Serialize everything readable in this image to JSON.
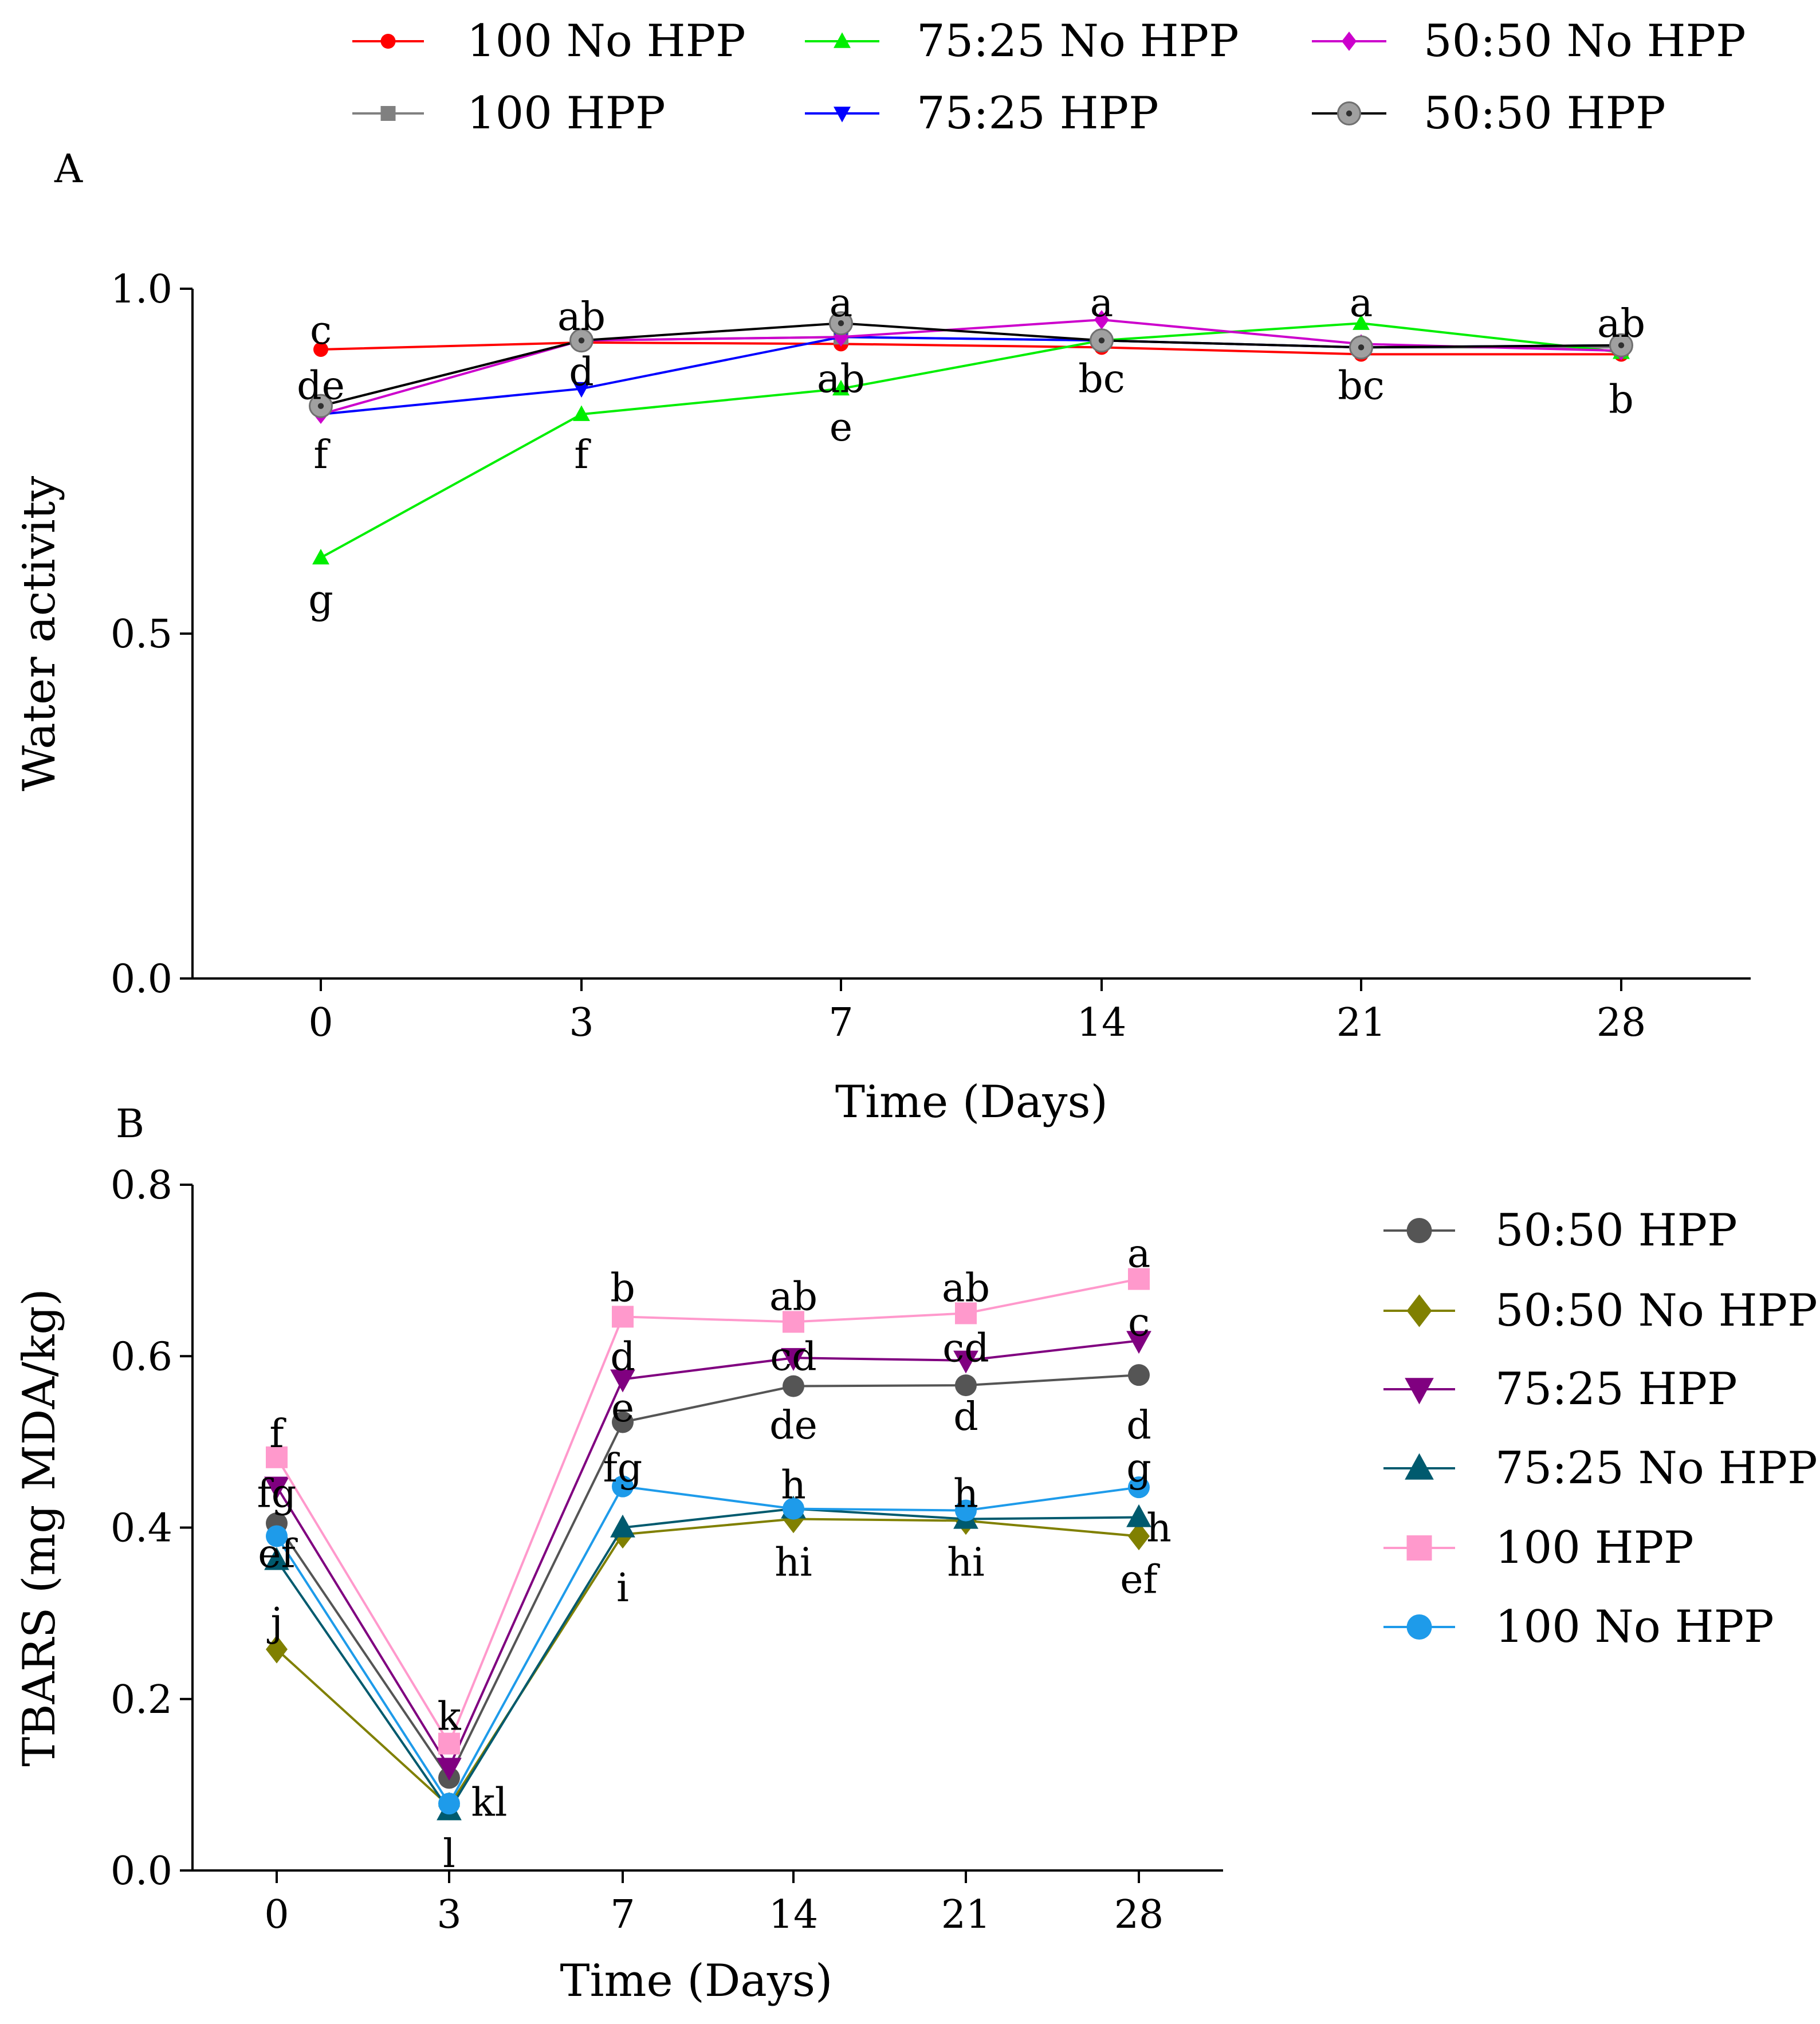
{
  "colors": {
    "axis": "#000000",
    "100 No HPP A": "#ff0000",
    "100 HPP A": "#808080",
    "75:25 No HPP A": "#00ee00",
    "75:25 HPP A": "#0000ff",
    "50:50 No HPP A": "#cc00cc",
    "50:50 HPP A": "#000000",
    "50:50 HPP B": "#555555",
    "50:50 No HPP B": "#808000",
    "75:25 HPP B": "#800080",
    "75:25 No HPP B": "#005a6e",
    "100 HPP B": "#ff99cc",
    "100 No HPP B": "#1e9bea"
  },
  "chart_data": [
    {
      "panel": "A",
      "type": "line",
      "xlabel": "Time (Days)",
      "ylabel": "Water activity",
      "categories": [
        "0",
        "3",
        "7",
        "14",
        "21",
        "28"
      ],
      "ylim": [
        0,
        1.0
      ],
      "yticks": [
        "0.0",
        "0.5",
        "1.0"
      ],
      "legend_position": "top",
      "series": [
        {
          "name": "100 No HPP",
          "marker": "circle",
          "values": [
            0.912,
            0.922,
            0.92,
            0.915,
            0.905,
            0.905
          ]
        },
        {
          "name": "100 HPP",
          "marker": "square",
          "values": [
            0.83,
            0.925,
            0.93,
            0.925,
            0.915,
            0.915
          ]
        },
        {
          "name": "75:25 No HPP",
          "marker": "triangle-up",
          "values": [
            0.61,
            0.818,
            0.855,
            0.925,
            0.95,
            0.908
          ]
        },
        {
          "name": "75:25  HPP",
          "marker": "triangle-down",
          "values": [
            0.818,
            0.855,
            0.93,
            0.925,
            0.915,
            0.918
          ]
        },
        {
          "name": "50:50 No HPP",
          "marker": "diamond",
          "values": [
            0.818,
            0.925,
            0.93,
            0.955,
            0.92,
            0.91
          ]
        },
        {
          "name": "50:50 HPP",
          "marker": "circle-dot",
          "values": [
            0.83,
            0.925,
            0.95,
            0.925,
            0.915,
            0.918
          ]
        }
      ],
      "annotations": [
        {
          "text": "c",
          "x": "0",
          "y": 0.94
        },
        {
          "text": "de",
          "x": "0",
          "y": 0.86
        },
        {
          "text": "f",
          "x": "0",
          "y": 0.76
        },
        {
          "text": "g",
          "x": "0",
          "y": 0.55
        },
        {
          "text": "ab",
          "x": "3",
          "y": 0.96
        },
        {
          "text": "d",
          "x": "3",
          "y": 0.88
        },
        {
          "text": "f",
          "x": "3",
          "y": 0.76
        },
        {
          "text": "a",
          "x": "7",
          "y": 0.98
        },
        {
          "text": "ab",
          "x": "7",
          "y": 0.87
        },
        {
          "text": "e",
          "x": "7",
          "y": 0.8
        },
        {
          "text": "a",
          "x": "14",
          "y": 0.98
        },
        {
          "text": "bc",
          "x": "14",
          "y": 0.87
        },
        {
          "text": "a",
          "x": "21",
          "y": 0.98
        },
        {
          "text": "bc",
          "x": "21",
          "y": 0.86
        },
        {
          "text": "ab",
          "x": "28",
          "y": 0.95
        },
        {
          "text": "b",
          "x": "28",
          "y": 0.84
        }
      ]
    },
    {
      "panel": "B",
      "type": "line",
      "xlabel": "Time (Days)",
      "ylabel": "TBARS (mg MDA/kg)",
      "categories": [
        "0",
        "3",
        "7",
        "14",
        "21",
        "28"
      ],
      "ylim": [
        0,
        0.8
      ],
      "yticks": [
        "0.0",
        "0.2",
        "0.4",
        "0.6",
        "0.8"
      ],
      "legend_position": "right",
      "series": [
        {
          "name": "50:50 HPP",
          "marker": "circle",
          "values": [
            0.405,
            0.108,
            0.523,
            0.565,
            0.566,
            0.578
          ]
        },
        {
          "name": "50:50 No HPP",
          "marker": "diamond",
          "values": [
            0.258,
            0.075,
            0.392,
            0.41,
            0.408,
            0.39
          ]
        },
        {
          "name": "75:25 HPP",
          "marker": "triangle-down",
          "values": [
            0.448,
            0.12,
            0.573,
            0.598,
            0.595,
            0.618
          ]
        },
        {
          "name": "75:25 No HPP",
          "marker": "triangle-up",
          "values": [
            0.362,
            0.07,
            0.4,
            0.422,
            0.41,
            0.412
          ]
        },
        {
          "name": "100 HPP",
          "marker": "square",
          "values": [
            0.482,
            0.148,
            0.646,
            0.64,
            0.65,
            0.69
          ]
        },
        {
          "name": "100 No HPP",
          "marker": "circle",
          "values": [
            0.39,
            0.078,
            0.448,
            0.422,
            0.42,
            0.447
          ]
        }
      ],
      "annotations": [
        {
          "text": "f",
          "x": "0",
          "y": 0.51
        },
        {
          "text": "fg",
          "x": "0",
          "y": 0.44
        },
        {
          "text": "ef",
          "x": "0",
          "y": 0.37
        },
        {
          "text": "j",
          "x": "0",
          "y": 0.29
        },
        {
          "text": "k",
          "x": "3",
          "y": 0.18
        },
        {
          "text": "kl",
          "x": "3",
          "y": 0.08
        },
        {
          "text": "l",
          "x": "3",
          "y": 0.02
        },
        {
          "text": "b",
          "x": "7",
          "y": 0.68
        },
        {
          "text": "d",
          "x": "7",
          "y": 0.6
        },
        {
          "text": "e",
          "x": "7",
          "y": 0.54
        },
        {
          "text": "fg",
          "x": "7",
          "y": 0.47
        },
        {
          "text": "i",
          "x": "7",
          "y": 0.33
        },
        {
          "text": "ab",
          "x": "14",
          "y": 0.67
        },
        {
          "text": "cd",
          "x": "14",
          "y": 0.6
        },
        {
          "text": "de",
          "x": "14",
          "y": 0.52
        },
        {
          "text": "h",
          "x": "14",
          "y": 0.45
        },
        {
          "text": "hi",
          "x": "14",
          "y": 0.36
        },
        {
          "text": "ab",
          "x": "21",
          "y": 0.68
        },
        {
          "text": "cd",
          "x": "21",
          "y": 0.61
        },
        {
          "text": "d",
          "x": "21",
          "y": 0.53
        },
        {
          "text": "h",
          "x": "21",
          "y": 0.44
        },
        {
          "text": "hi",
          "x": "21",
          "y": 0.36
        },
        {
          "text": "a",
          "x": "28",
          "y": 0.72
        },
        {
          "text": "c",
          "x": "28",
          "y": 0.64
        },
        {
          "text": "d",
          "x": "28",
          "y": 0.52
        },
        {
          "text": "g",
          "x": "28",
          "y": 0.47
        },
        {
          "text": "h",
          "x": "28",
          "y": 0.4
        },
        {
          "text": "ef",
          "x": "28",
          "y": 0.34
        }
      ]
    }
  ]
}
